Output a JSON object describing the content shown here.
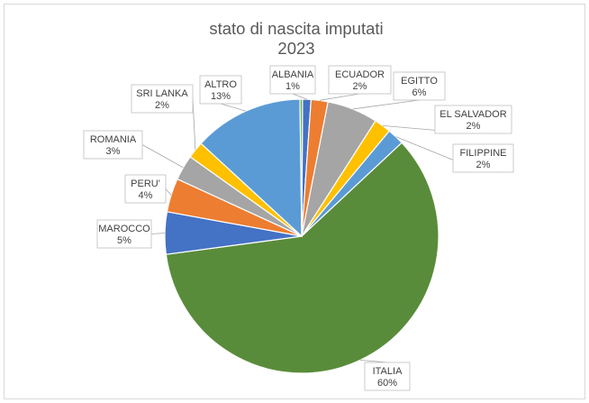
{
  "chart_data": {
    "type": "pie",
    "title": "stato di nascita imputati",
    "subtitle": "2023",
    "slices": [
      {
        "label": "ALBANIA",
        "value": 1,
        "display": "1%",
        "color": "#4472c4"
      },
      {
        "label": "ECUADOR",
        "value": 2,
        "display": "2%",
        "color": "#ed7d31"
      },
      {
        "label": "EGITTO",
        "value": 6,
        "display": "6%",
        "color": "#a5a5a5"
      },
      {
        "label": "EL SALVADOR",
        "value": 2,
        "display": "2%",
        "color": "#ffc000"
      },
      {
        "label": "FILIPPINE",
        "value": 2,
        "display": "2%",
        "color": "#5b9bd5"
      },
      {
        "label": "ITALIA",
        "value": 60,
        "display": "60%",
        "color": "#598c3a"
      },
      {
        "label": "MAROCCO",
        "value": 5,
        "display": "5%",
        "color": "#4472c4"
      },
      {
        "label": "PERU'",
        "value": 4,
        "display": "4%",
        "color": "#ed7d31"
      },
      {
        "label": "ROMANIA",
        "value": 3,
        "display": "3%",
        "color": "#a5a5a5"
      },
      {
        "label": "SRI LANKA",
        "value": 2,
        "display": "2%",
        "color": "#ffc000"
      },
      {
        "label": "ALTRO",
        "value": 13,
        "display": "13%",
        "color": "#5b9bd5"
      },
      {
        "label": "",
        "value": 0.3,
        "display": "",
        "color": "#70ad47"
      }
    ]
  }
}
